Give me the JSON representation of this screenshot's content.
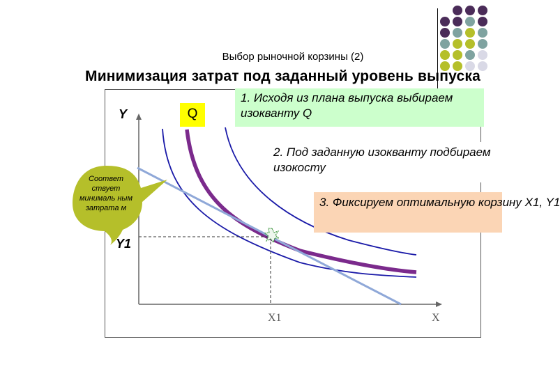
{
  "header": {
    "subtitle": "Выбор рыночной корзины (2)",
    "title": "Минимизация затрат под заданный уровень выпуска"
  },
  "steps": [
    {
      "text": "1. Исходя из плана выпуска выбираем изокванту Q",
      "bg": "#ccffcc"
    },
    {
      "text": "2. Под заданную изокванту подбираем изокосту",
      "bg": "#ffffff"
    },
    {
      "text": "3. Фиксируем оптимальную корзину X1, Y1",
      "bg": "#fbd5b5"
    }
  ],
  "graph": {
    "y_axis_label": "Y",
    "x_axis_label": "X",
    "x1_label": "X1",
    "y1_label": "Y1",
    "isoquant_label": "Q",
    "callout": "Соответ ствует минималь ным затрата м"
  },
  "colors": {
    "isoquant": "#7b2a8c",
    "other_isoquants": "#1a1aa8",
    "isocost": "#8fa8d8",
    "highlight": "#ffff00",
    "callout": "#b5bf2a",
    "dots_purple": "#4b2c59",
    "dots_teal": "#7fa3a0",
    "dots_olive": "#b5bf2a",
    "dots_light": "#d9d9e6"
  }
}
